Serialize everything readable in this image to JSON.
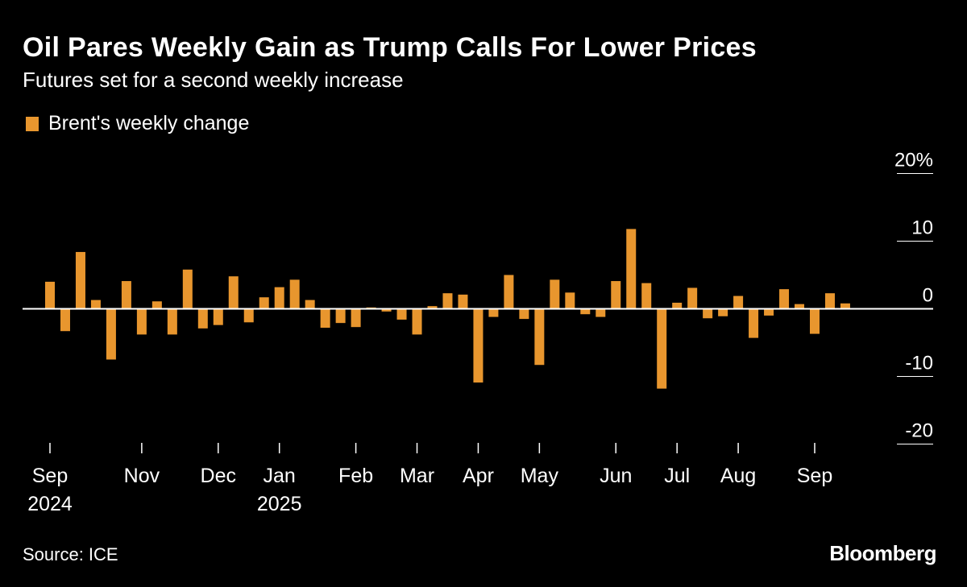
{
  "chart_data": {
    "type": "bar",
    "title": "Oil Pares Weekly Gain as Trump Calls For Lower Prices",
    "subtitle": "Futures set for a second weekly increase",
    "legend": [
      {
        "label": "Brent's weekly change",
        "color": "#e8962e"
      }
    ],
    "legend_placement": "top-left",
    "ylabel": "",
    "ylim": [
      -20,
      20
    ],
    "yticks": [
      {
        "value": 20,
        "label": "20%"
      },
      {
        "value": 10,
        "label": "10"
      },
      {
        "value": 0,
        "label": "0"
      },
      {
        "value": -10,
        "label": "-10"
      },
      {
        "value": -20,
        "label": "-20"
      }
    ],
    "xticks": [
      {
        "index": 0,
        "label": "Sep",
        "sub": "2024"
      },
      {
        "index": 6,
        "label": "Nov"
      },
      {
        "index": 11,
        "label": "Dec"
      },
      {
        "index": 15,
        "label": "Jan",
        "sub": "2025"
      },
      {
        "index": 20,
        "label": "Feb"
      },
      {
        "index": 24,
        "label": "Mar"
      },
      {
        "index": 28,
        "label": "Apr"
      },
      {
        "index": 32,
        "label": "May"
      },
      {
        "index": 37,
        "label": "Jun"
      },
      {
        "index": 41,
        "label": "Jul"
      },
      {
        "index": 45,
        "label": "Aug"
      },
      {
        "index": 50,
        "label": "Sep"
      }
    ],
    "series": [
      {
        "name": "Brent's weekly change",
        "color": "#e8962e",
        "values": [
          4.0,
          -3.3,
          8.4,
          1.3,
          -7.5,
          4.1,
          -3.8,
          1.1,
          -3.8,
          5.8,
          -2.9,
          -2.4,
          4.8,
          -2.0,
          1.7,
          3.2,
          4.3,
          1.3,
          -2.8,
          -2.1,
          -2.7,
          0.2,
          -0.4,
          -1.6,
          -3.8,
          0.4,
          2.3,
          2.1,
          -10.9,
          -1.2,
          5.0,
          -1.5,
          -8.3,
          4.3,
          2.4,
          -0.8,
          -1.2,
          4.1,
          11.8,
          3.8,
          -11.8,
          0.9,
          3.1,
          -1.4,
          -1.1,
          1.9,
          -4.3,
          -1.0,
          2.9,
          0.7,
          -3.7,
          2.3,
          0.8
        ]
      }
    ]
  },
  "source": "Source: ICE",
  "brand": "Bloomberg"
}
